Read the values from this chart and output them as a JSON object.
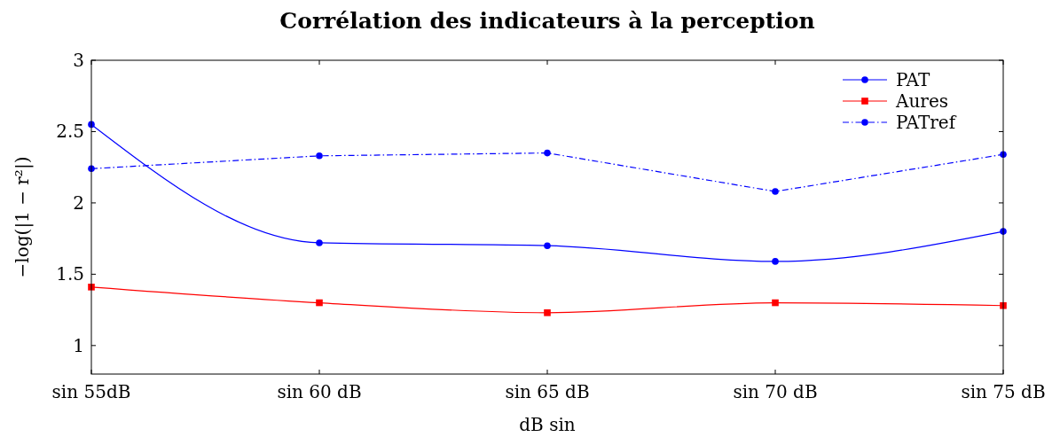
{
  "chart_data": {
    "type": "line",
    "title": "Corrélation des indicateurs à la perception",
    "xlabel": "dB sin",
    "ylabel": "−log(|1 − r²|)",
    "categories": [
      "sin 55dB",
      "sin 60 dB",
      "sin 65 dB",
      "sin 70 dB",
      "sin 75 dB"
    ],
    "ylim": [
      0.8,
      3
    ],
    "yticks": [
      1,
      1.5,
      2,
      2.5,
      3
    ],
    "grid": false,
    "legend": "top right",
    "series": [
      {
        "name": "PAT",
        "color": "#0000ff",
        "marker": "circle",
        "line_style": "solid",
        "values": [
          2.55,
          1.72,
          1.7,
          1.59,
          1.8
        ]
      },
      {
        "name": "Aures",
        "color": "#ff0000",
        "marker": "square",
        "line_style": "solid",
        "values": [
          1.41,
          1.3,
          1.23,
          1.3,
          1.28
        ]
      },
      {
        "name": "PATref",
        "color": "#0000ff",
        "marker": "circle",
        "line_style": "dashed",
        "values": [
          2.24,
          2.33,
          2.35,
          2.08,
          2.34
        ]
      }
    ]
  }
}
